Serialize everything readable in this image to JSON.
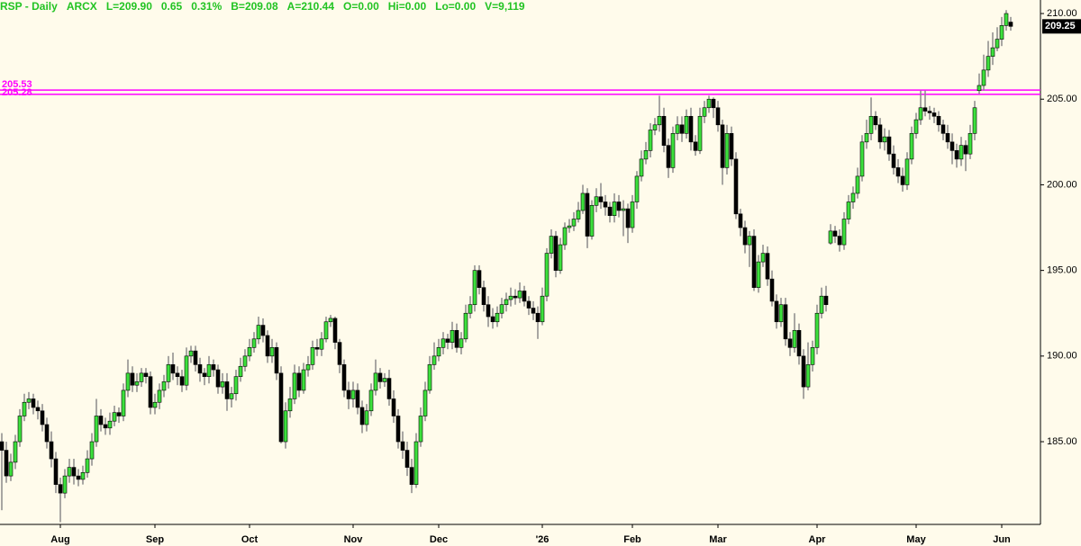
{
  "chart_data": {
    "type": "candlestick",
    "title": "RSP - Daily",
    "info": [
      "ARCX",
      "L=209.90",
      "0.65",
      "0.31%",
      "B=209.08",
      "A=210.44",
      "O=0.00",
      "Hi=0.00",
      "Lo=0.00",
      "V=9,119"
    ],
    "colors": {
      "up": "#3ce03c",
      "down": "#000000",
      "wick": "#8a8a8a",
      "text": "#22c322"
    },
    "ylim": [
      180.17,
      210.79
    ],
    "xlim": [
      -0.4,
      230.6
    ],
    "yticks": [
      {
        "value": 185,
        "label": "185.00"
      },
      {
        "value": 190,
        "label": "190.00"
      },
      {
        "value": 195,
        "label": "195.00"
      },
      {
        "value": 200,
        "label": "200.00"
      },
      {
        "value": 205,
        "label": "205.00"
      },
      {
        "value": 210,
        "label": "210.00"
      }
    ],
    "xticks": [
      {
        "value": 13,
        "label": "Aug"
      },
      {
        "value": 34,
        "label": "Sep"
      },
      {
        "value": 55,
        "label": "Oct"
      },
      {
        "value": 78,
        "label": "Nov"
      },
      {
        "value": 97,
        "label": "Dec"
      },
      {
        "value": 120,
        "label": "'26"
      },
      {
        "value": 140,
        "label": "Feb"
      },
      {
        "value": 159,
        "label": "Mar"
      },
      {
        "value": 181,
        "label": "Apr"
      },
      {
        "value": 203,
        "label": "May"
      },
      {
        "value": 222,
        "label": "Jun"
      }
    ],
    "levels": [
      {
        "value": 205.53,
        "color": "#ff00ff"
      },
      {
        "value": 205.28,
        "color": "#ff00ff"
      }
    ],
    "last_price": 209.25,
    "open": [
      185,
      184.5,
      183,
      183.8,
      185,
      186.5,
      187.3,
      187.5,
      187,
      186.8,
      186,
      185,
      184,
      182.5,
      182,
      183,
      183.5,
      183,
      182.8,
      183.2,
      184,
      185,
      186.5,
      186,
      185.8,
      186.2,
      186.7,
      186.5,
      188,
      189,
      188.3,
      188.5,
      189,
      188.8,
      187,
      187.3,
      188,
      188.5,
      189.5,
      189,
      188.8,
      188.3,
      190,
      190.3,
      189.5,
      189,
      188.8,
      189.5,
      189.2,
      188.2,
      188.5,
      187.5,
      187.8,
      188.8,
      189.4,
      190,
      190.5,
      191,
      191.8,
      191.2,
      190,
      190.5,
      189,
      185,
      186.8,
      187.5,
      189,
      188,
      189.2,
      189.5,
      190.5,
      190.4,
      191,
      192,
      192.2,
      190.8,
      189.5,
      188,
      187.5,
      188,
      187,
      186,
      186.8,
      188,
      189,
      188.5,
      188.7,
      187.5,
      186.5,
      185,
      184.5,
      183.5,
      182.5,
      185,
      186.5,
      188,
      189.5,
      190,
      190.5,
      191,
      190.8,
      191.5,
      190.5,
      191,
      192.5,
      193,
      195,
      194,
      193,
      192.3,
      192,
      192.5,
      193,
      193.3,
      193.5,
      193.4,
      193.8,
      193.2,
      192.8,
      192.5,
      192,
      193.5,
      196,
      197,
      195,
      196.5,
      197.5,
      197.6,
      198,
      198.5,
      199.5,
      197,
      198.8,
      199.3,
      199,
      198.7,
      198.2,
      199,
      198.5,
      198.6,
      197.5,
      199,
      200.5,
      201.5,
      202,
      203.2,
      203.5,
      204,
      202.3,
      201,
      203,
      203.5,
      203,
      204,
      202.5,
      202,
      204,
      204.5,
      205,
      204.5,
      203.5,
      201,
      203,
      201.5,
      198.3,
      197.5,
      196.5,
      197,
      194,
      195.5,
      196,
      194.5,
      193.2,
      192,
      193,
      191,
      190.5,
      191.5,
      190,
      188.2,
      189.5,
      190.5,
      192.5,
      193.5,
      196.6,
      197.3,
      197,
      196.5,
      198,
      199,
      199.5,
      200.5,
      202.5,
      203,
      204,
      203.5,
      202.5,
      202.8,
      201.8,
      201,
      200.5,
      200,
      201.5,
      203,
      203.8,
      204.5,
      204.3,
      204.2,
      204,
      203.5,
      203,
      202.5,
      202,
      201.5,
      202.3,
      201.8,
      203,
      205.5,
      205.8,
      206.7,
      207.5,
      208,
      208.5,
      209.3,
      209.5
    ],
    "high": [
      185.5,
      185,
      184.3,
      185.4,
      186.9,
      187.8,
      187.9,
      187.8,
      187.4,
      187.2,
      186.4,
      185.6,
      184.4,
      182.9,
      183.4,
      184,
      184,
      183.4,
      183.6,
      184.5,
      185.5,
      187.5,
      186.9,
      186.4,
      186.7,
      187.1,
      187,
      188.4,
      189.8,
      189.4,
      189,
      189.3,
      189.3,
      189.1,
      187.8,
      188.4,
      188.9,
      190,
      190.2,
      189.4,
      189.2,
      190.5,
      190.6,
      190.6,
      189.9,
      189.3,
      190,
      189.8,
      189.5,
      189,
      189,
      188.2,
      189.2,
      189.9,
      190.4,
      191,
      191.4,
      192.3,
      192.2,
      191.5,
      191,
      190.8,
      189.4,
      187.3,
      188.2,
      189.5,
      189.4,
      189.6,
      190,
      190.9,
      191,
      191.4,
      192.3,
      192.4,
      192.3,
      191,
      189.8,
      188.5,
      188.5,
      188.4,
      187.4,
      187.2,
      188.4,
      189.8,
      189.3,
      189,
      189.2,
      188,
      186.9,
      185.6,
      185,
      184,
      185.5,
      187,
      188.5,
      190,
      190.8,
      191,
      191.4,
      191.3,
      192,
      191.9,
      191.4,
      193,
      193.5,
      195.3,
      195.3,
      194.4,
      193.5,
      192.8,
      192.9,
      193.4,
      193.7,
      194,
      193.9,
      194.3,
      194.1,
      193.5,
      193.2,
      192.9,
      194,
      196.3,
      197.4,
      197.3,
      196.9,
      197.8,
      198,
      198.4,
      199,
      200,
      199.8,
      199.1,
      199.8,
      200.1,
      199.4,
      199,
      199.5,
      199.4,
      199.1,
      198.9,
      199.4,
      200.8,
      202,
      202.5,
      203.6,
      203.9,
      205.2,
      204.5,
      202.7,
      203.4,
      204,
      204,
      204.4,
      204.5,
      202.9,
      204.5,
      204.9,
      205.2,
      205.1,
      204.9,
      203.8,
      203.5,
      203.4,
      201.9,
      198.6,
      197.9,
      197.3,
      197.4,
      195.9,
      196.5,
      196.4,
      195,
      193.6,
      193.4,
      193.4,
      191.4,
      192.5,
      191.9,
      190.4,
      190.8,
      190.9,
      193,
      194,
      194.1,
      197.7,
      197.6,
      197.4,
      198.4,
      199.4,
      199.9,
      201,
      202.9,
      203.8,
      205.1,
      204.3,
      203.9,
      203.3,
      203.2,
      202.3,
      201.5,
      201,
      201.9,
      203.4,
      204.2,
      205.5,
      205.5,
      204.6,
      204.5,
      204.3,
      203.8,
      203.5,
      203,
      202.4,
      202.8,
      202.6,
      203.5,
      204.9,
      206.5,
      207.6,
      208.4,
      208.9,
      209.2,
      209.8,
      210.2,
      209.8
    ],
    "low": [
      181,
      182.6,
      182.7,
      183.4,
      184.7,
      186.2,
      186.9,
      186.6,
      186.3,
      185.6,
      184.6,
      183.5,
      182,
      180.3,
      181.7,
      182.6,
      182.5,
      182.4,
      182.5,
      182.9,
      183.6,
      184.7,
      185.6,
      185.4,
      185.4,
      185.9,
      186.1,
      186.2,
      187.6,
      187.9,
      187.9,
      188.2,
      188.4,
      186.6,
      186.6,
      186.9,
      187.6,
      188.1,
      188.6,
      188.3,
      187.9,
      188,
      189.6,
      189.1,
      188.5,
      188.3,
      188.4,
      188.8,
      187.8,
      187.8,
      186.8,
      187,
      187.4,
      188.5,
      189.1,
      189.7,
      190.2,
      190.7,
      190.8,
      189.6,
      189.6,
      188.6,
      184.9,
      184.6,
      186.4,
      187.2,
      187.6,
      187.8,
      188.8,
      189.2,
      190,
      190,
      190.8,
      191.7,
      190.4,
      189,
      187.6,
      186.9,
      187,
      186.6,
      185.5,
      185.6,
      186.5,
      187.7,
      188.1,
      188.2,
      187.1,
      186.1,
      184.6,
      184,
      183,
      182,
      182.3,
      184.7,
      186.2,
      187.8,
      189.2,
      189.7,
      190.1,
      190.4,
      190.4,
      190.2,
      190.1,
      190.8,
      192.2,
      192.6,
      193.6,
      192.6,
      191.7,
      191.6,
      191.7,
      192.2,
      192.6,
      192.9,
      193,
      193.1,
      192.9,
      192.4,
      192.1,
      191,
      191.8,
      193.2,
      195.7,
      194.6,
      194.8,
      196.2,
      197.2,
      197.3,
      197.8,
      198.3,
      196.3,
      196.8,
      198.4,
      198.6,
      198.2,
      197.8,
      197.8,
      198.1,
      197,
      196.6,
      197.2,
      198.6,
      200.2,
      201.2,
      201.6,
      202.9,
      203.1,
      201.9,
      200.4,
      200.7,
      202.6,
      202.5,
      202.7,
      202,
      201.7,
      201.8,
      203.6,
      204.2,
      203.9,
      203.1,
      200,
      200.6,
      201.1,
      198,
      197,
      196,
      195.2,
      193.8,
      193.7,
      195.2,
      194.1,
      192.9,
      191.6,
      191.7,
      190.6,
      190,
      190.2,
      189.5,
      187.5,
      188,
      189.1,
      190.1,
      192.2,
      192.6,
      196.5,
      196.6,
      196.1,
      196.2,
      197.7,
      198.6,
      199.2,
      200.2,
      202.1,
      202.6,
      203.2,
      202.1,
      202,
      201.4,
      200.6,
      200.1,
      199.6,
      199.7,
      201.2,
      202.7,
      203.5,
      204,
      203.8,
      203.6,
      203.1,
      202.6,
      202.1,
      201.2,
      201,
      201.1,
      200.8,
      201.5,
      202.6,
      205.3,
      205.5,
      206.3,
      207,
      207.8,
      208.1,
      209,
      209
    ],
    "close": [
      184.5,
      183,
      183.8,
      185,
      186.5,
      187.3,
      187.5,
      187,
      186.8,
      186,
      185,
      184,
      182.5,
      182,
      183,
      183.5,
      183,
      182.8,
      183.2,
      184,
      185,
      186.5,
      186,
      185.8,
      186.2,
      186.7,
      186.5,
      188,
      189,
      188.3,
      188.5,
      189,
      188.8,
      187,
      187.3,
      188,
      188.5,
      189.5,
      189,
      188.8,
      188.3,
      190,
      190.3,
      189.5,
      189,
      188.8,
      189.5,
      189.2,
      188.2,
      188.5,
      187.5,
      187.8,
      188.8,
      189.4,
      190,
      190.5,
      191,
      191.8,
      191.2,
      190,
      190.5,
      189,
      185,
      186.8,
      187.5,
      189,
      188,
      189.2,
      189.5,
      190.5,
      190.4,
      191,
      192,
      192.2,
      190.8,
      189.5,
      188,
      187.5,
      188,
      187,
      186,
      186.8,
      188,
      189,
      188.5,
      188.7,
      187.5,
      186.5,
      185,
      184.5,
      183.5,
      182.5,
      185,
      186.5,
      188,
      189.5,
      190,
      190.5,
      191,
      190.8,
      191.5,
      190.5,
      191,
      192.5,
      193,
      195,
      194,
      193,
      192.3,
      192,
      192.5,
      193,
      193.3,
      193.5,
      193.4,
      193.8,
      193.2,
      192.8,
      192.5,
      192,
      193.5,
      196,
      197,
      195,
      196.5,
      197.5,
      197.6,
      198,
      198.5,
      199.5,
      197,
      198.8,
      199.3,
      199,
      198.7,
      198.2,
      199,
      198.5,
      198.6,
      197.5,
      199,
      200.5,
      201.5,
      202,
      203.2,
      203.5,
      204,
      202.3,
      201,
      203,
      203.5,
      203,
      204,
      202.5,
      202,
      204,
      204.5,
      205,
      204.5,
      203.5,
      201,
      203,
      201.5,
      198.3,
      197.5,
      196.5,
      197,
      194,
      195.5,
      196,
      194.5,
      193.2,
      192,
      193,
      191,
      190.5,
      191.5,
      190,
      188.2,
      189.5,
      190.5,
      192.5,
      193.5,
      193,
      197.3,
      197,
      196.5,
      198,
      199,
      199.5,
      200.5,
      202.5,
      203,
      204,
      203.5,
      202.5,
      202.8,
      201.8,
      201,
      200.5,
      200,
      201.5,
      203,
      203.8,
      204.5,
      204.3,
      204.2,
      204,
      203.5,
      203,
      202.5,
      202,
      201.5,
      202.3,
      201.8,
      203,
      204.5,
      205.8,
      206.7,
      207.5,
      208,
      208.5,
      209.3,
      210,
      209.25
    ]
  }
}
